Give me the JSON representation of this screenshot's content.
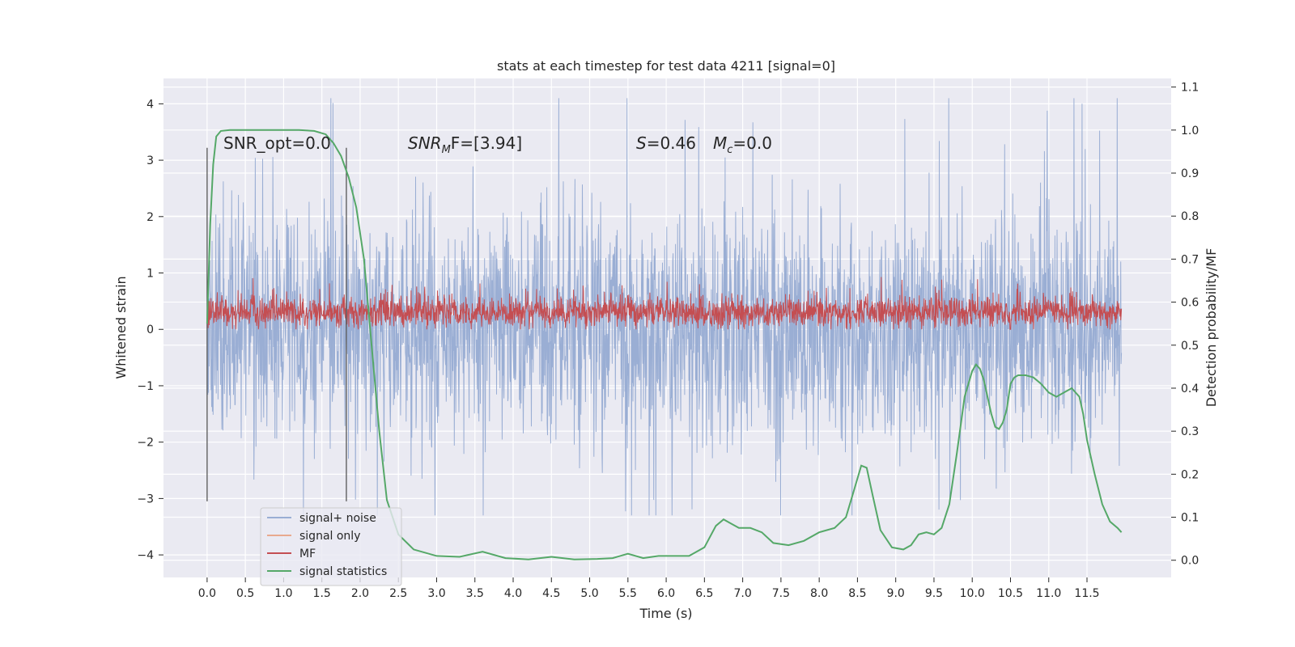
{
  "chart_data": {
    "type": "line",
    "title": "stats at each timestep for test data 4211 [signal=0]",
    "xlabel": "Time (s)",
    "ylabel": "Whitened strain",
    "y2label": "Detection probability/MF",
    "xlim": [
      -0.57,
      12.6
    ],
    "ylim": [
      -4.4,
      4.45
    ],
    "y2lim": [
      -0.04,
      1.12
    ],
    "x_ticks": [
      "0.0",
      "0.5",
      "1.0",
      "1.5",
      "2.0",
      "2.5",
      "3.0",
      "3.5",
      "4.0",
      "4.5",
      "5.0",
      "5.5",
      "6.0",
      "6.5",
      "7.0",
      "7.5",
      "8.0",
      "8.5",
      "9.0",
      "9.5",
      "10.0",
      "10.5",
      "11.0",
      "11.5"
    ],
    "y_ticks": [
      "4",
      "3",
      "2",
      "1",
      "0",
      "−1",
      "−2",
      "−3",
      "−4"
    ],
    "y2_ticks": [
      "1.1",
      "1.0",
      "0.9",
      "0.8",
      "0.7",
      "0.6",
      "0.5",
      "0.4",
      "0.3",
      "0.2",
      "0.1",
      "0.0"
    ],
    "grid": true,
    "legend_position": "lower-left",
    "vlines": [
      0.0,
      1.82
    ],
    "annotations": {
      "snr_opt": "SNR_opt=0.0",
      "snr_mf_main": "SNR",
      "snr_mf_sub": "M",
      "snr_mf_tail": "F=[3.94]",
      "s_sym": "S",
      "s_val": "=0.46",
      "mc_sym": "M",
      "mc_sub": "c",
      "mc_val": "=0.0"
    },
    "series": [
      {
        "name": "signal+ noise",
        "color": "#9aaed4",
        "axis": "left",
        "kind": "noise",
        "range": [
          -3.3,
          4.1
        ]
      },
      {
        "name": "signal only",
        "color": "#e8a98e",
        "axis": "left",
        "values": []
      },
      {
        "name": "MF",
        "color": "#c44e52",
        "axis": "left",
        "kind": "noise",
        "range": [
          0.0,
          0.95
        ]
      },
      {
        "name": "signal statistics",
        "color": "#55a868",
        "axis": "right",
        "x": [
          0.0,
          0.04,
          0.08,
          0.12,
          0.18,
          0.3,
          0.5,
          0.8,
          1.0,
          1.2,
          1.4,
          1.55,
          1.65,
          1.75,
          1.85,
          1.95,
          2.05,
          2.15,
          2.25,
          2.35,
          2.5,
          2.7,
          3.0,
          3.3,
          3.6,
          3.9,
          4.2,
          4.5,
          4.8,
          5.1,
          5.3,
          5.5,
          5.7,
          5.9,
          6.1,
          6.3,
          6.5,
          6.65,
          6.75,
          6.85,
          6.95,
          7.1,
          7.25,
          7.4,
          7.6,
          7.8,
          8.0,
          8.2,
          8.35,
          8.45,
          8.55,
          8.62,
          8.7,
          8.8,
          8.95,
          9.1,
          9.2,
          9.3,
          9.4,
          9.5,
          9.6,
          9.7,
          9.8,
          9.9,
          10.0,
          10.05,
          10.1,
          10.15,
          10.2,
          10.25,
          10.3,
          10.35,
          10.4,
          10.45,
          10.5,
          10.55,
          10.6,
          10.7,
          10.8,
          10.9,
          11.0,
          11.1,
          11.2,
          11.3,
          11.4,
          11.45,
          11.5,
          11.6,
          11.7,
          11.8,
          11.9,
          11.95
        ],
        "values": [
          0.55,
          0.78,
          0.92,
          0.985,
          0.998,
          1.0,
          1.0,
          1.0,
          1.0,
          1.0,
          0.998,
          0.99,
          0.97,
          0.94,
          0.89,
          0.82,
          0.7,
          0.5,
          0.3,
          0.14,
          0.06,
          0.025,
          0.01,
          0.008,
          0.02,
          0.005,
          0.002,
          0.008,
          0.002,
          0.003,
          0.005,
          0.015,
          0.005,
          0.01,
          0.01,
          0.01,
          0.03,
          0.08,
          0.095,
          0.085,
          0.075,
          0.075,
          0.065,
          0.04,
          0.035,
          0.045,
          0.065,
          0.075,
          0.1,
          0.16,
          0.22,
          0.215,
          0.15,
          0.07,
          0.03,
          0.025,
          0.035,
          0.06,
          0.065,
          0.06,
          0.075,
          0.13,
          0.25,
          0.38,
          0.44,
          0.455,
          0.445,
          0.42,
          0.38,
          0.34,
          0.31,
          0.305,
          0.32,
          0.35,
          0.41,
          0.425,
          0.43,
          0.43,
          0.425,
          0.41,
          0.39,
          0.38,
          0.39,
          0.4,
          0.38,
          0.34,
          0.28,
          0.2,
          0.13,
          0.09,
          0.075,
          0.065
        ]
      }
    ]
  }
}
